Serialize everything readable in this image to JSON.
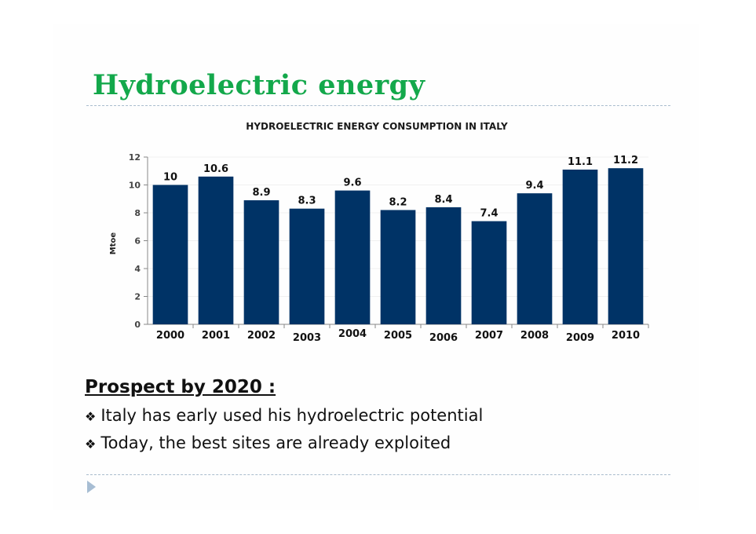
{
  "slide": {
    "title": "Hydroelectric energy",
    "title_color": "#13a84b",
    "prospect_heading": "Prospect by 2020 :",
    "bullets": [
      {
        "icon": "diamond-bullet-icon",
        "glyph": "❖",
        "text": "Italy has early used his hydroelectric potential"
      },
      {
        "icon": "diamond-bullet-icon",
        "glyph": "❖",
        "text": "Today, the best sites are already exploited"
      }
    ],
    "nav_icon": "triangle-right-icon"
  },
  "chart_data": {
    "type": "bar",
    "title": "HYDROELECTRIC ENERGY CONSUMPTION IN ITALY",
    "xlabel": "",
    "ylabel": "Mtoe",
    "categories": [
      "2000",
      "2001",
      "2002",
      "2003",
      "2004",
      "2005",
      "2006",
      "2007",
      "2008",
      "2009",
      "2010"
    ],
    "values": [
      10,
      10.6,
      8.9,
      8.3,
      9.6,
      8.2,
      8.4,
      7.4,
      9.4,
      11.1,
      11.2
    ],
    "value_labels": [
      "10",
      "10.6",
      "8.9",
      "8.3",
      "9.6",
      "8.2",
      "8.4",
      "7.4",
      "9.4",
      "11.1",
      "11.2"
    ],
    "ylim": [
      0,
      12
    ],
    "yticks": [
      0,
      2,
      4,
      6,
      8,
      10,
      12
    ],
    "grid": true,
    "legend": null,
    "bar_color": "#003366"
  }
}
